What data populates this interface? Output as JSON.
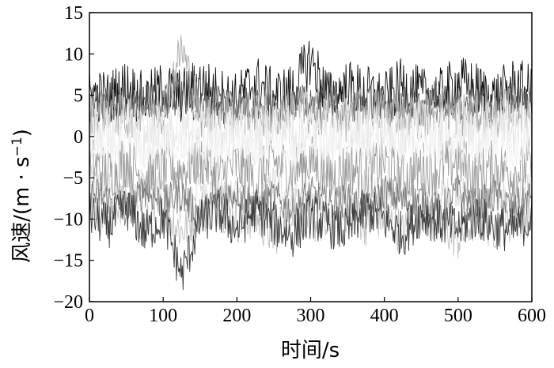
{
  "chart_data": {
    "type": "line",
    "title": "",
    "xlabel": "时间/s",
    "ylabel": "风速/(m · s",
    "ylabel_superscript": "−1",
    "ylabel_close": ")",
    "xlim": [
      0,
      600
    ],
    "ylim": [
      -20,
      15
    ],
    "x_ticks": [
      0,
      100,
      200,
      300,
      400,
      500,
      600
    ],
    "x_tick_labels": [
      "0",
      "100",
      "200",
      "300",
      "400",
      "500",
      "600"
    ],
    "y_ticks": [
      15,
      10,
      5,
      0,
      -5,
      -10,
      -15,
      -20
    ],
    "y_tick_labels": [
      "15",
      "10",
      "5",
      "0",
      "−5",
      "−10",
      "−15",
      "−20"
    ],
    "grid": false,
    "legend": "none",
    "series": [
      {
        "color": "#d8d8d8",
        "x": [
          0,
          25,
          50,
          75,
          100,
          125,
          150,
          175,
          200,
          225,
          250,
          275,
          300,
          325,
          350,
          375,
          400,
          425,
          450,
          475,
          500,
          525,
          550,
          575,
          600
        ],
        "values": [
          -5.5,
          -6.2,
          -7.8,
          -5.1,
          -6.9,
          -8.4,
          -5.8,
          -7.2,
          -6.1,
          -8.9,
          -5.4,
          -6.7,
          -7.9,
          -6.0,
          -8.2,
          -5.6,
          -7.1,
          -6.5,
          -8.8,
          -7.4,
          -6.2,
          -9.5,
          -6.8,
          -7.7,
          -6.3
        ]
      },
      {
        "color": "#c0c0c0",
        "x": [
          0,
          25,
          50,
          75,
          100,
          125,
          150,
          175,
          200,
          225,
          250,
          275,
          300,
          325,
          350,
          375,
          400,
          425,
          450,
          475,
          500,
          525,
          550,
          575,
          600
        ],
        "values": [
          -8.2,
          -9.6,
          -7.4,
          -10.8,
          -8.9,
          -11.5,
          -9.1,
          -8.3,
          -10.2,
          -9.7,
          -12.1,
          -8.6,
          -9.9,
          -11.3,
          -8.8,
          -10.5,
          -9.4,
          -11.8,
          -9.0,
          -10.7,
          -12.4,
          -9.8,
          -11.0,
          -10.1,
          -9.3
        ]
      },
      {
        "color": "#9a9a9a",
        "x": [
          0,
          25,
          50,
          75,
          100,
          125,
          150,
          175,
          200,
          225,
          250,
          275,
          300,
          325,
          350,
          375,
          400,
          425,
          450,
          475,
          500,
          525,
          550,
          575,
          600
        ],
        "values": [
          -3.1,
          -4.5,
          -2.8,
          -5.2,
          -3.9,
          -4.1,
          -2.6,
          -4.8,
          -3.4,
          -5.5,
          -3.0,
          -4.3,
          -2.9,
          -5.0,
          -3.7,
          -4.6,
          -3.2,
          -5.3,
          -3.8,
          -4.0,
          -2.7,
          -4.9,
          -3.5,
          -4.4,
          -3.3
        ]
      },
      {
        "color": "#7a7a7a",
        "x": [
          0,
          25,
          50,
          75,
          100,
          125,
          150,
          175,
          200,
          225,
          250,
          275,
          300,
          325,
          350,
          375,
          400,
          425,
          450,
          475,
          500,
          525,
          550,
          575,
          600
        ],
        "values": [
          -6.8,
          -7.5,
          -9.2,
          -6.4,
          -8.1,
          -7.0,
          -9.6,
          -7.8,
          -6.6,
          -8.7,
          -7.3,
          -9.0,
          -6.9,
          -8.4,
          -7.7,
          -9.3,
          -6.5,
          -8.0,
          -7.6,
          -9.1,
          -6.7,
          -8.5,
          -7.2,
          -8.8,
          -7.1
        ]
      },
      {
        "color": "#3a3a3a",
        "x": [
          0,
          25,
          50,
          75,
          100,
          125,
          150,
          175,
          200,
          225,
          250,
          275,
          300,
          325,
          350,
          375,
          400,
          425,
          450,
          475,
          500,
          525,
          550,
          575,
          600
        ],
        "values": [
          -9.4,
          -10.9,
          -8.5,
          -11.7,
          -9.8,
          -16.8,
          -10.3,
          -9.1,
          -11.2,
          -8.9,
          -10.6,
          -12.0,
          -9.5,
          -10.8,
          -11.5,
          -8.7,
          -10.1,
          -11.9,
          -9.3,
          -10.4,
          -11.1,
          -9.7,
          -10.9,
          -11.4,
          -9.9
        ]
      },
      {
        "color": "#111111",
        "x": [
          0,
          25,
          50,
          75,
          100,
          125,
          150,
          175,
          200,
          225,
          250,
          275,
          300,
          325,
          350,
          375,
          400,
          425,
          450,
          475,
          500,
          525,
          550,
          575,
          600
        ],
        "values": [
          5.2,
          4.6,
          6.1,
          4.3,
          5.8,
          4.9,
          6.4,
          5.1,
          4.4,
          6.7,
          4.8,
          5.5,
          9.4,
          4.7,
          6.0,
          5.3,
          4.5,
          6.3,
          5.0,
          4.9,
          6.6,
          5.7,
          4.6,
          6.2,
          5.4
        ]
      },
      {
        "color": "#5a5a5a",
        "x": [
          0,
          25,
          50,
          75,
          100,
          125,
          150,
          175,
          200,
          225,
          250,
          275,
          300,
          325,
          350,
          375,
          400,
          425,
          450,
          475,
          500,
          525,
          550,
          575,
          600
        ],
        "values": [
          3.8,
          4.2,
          3.1,
          4.9,
          3.6,
          5.1,
          3.3,
          4.6,
          3.9,
          4.0,
          3.2,
          4.8,
          3.5,
          4.4,
          3.0,
          4.7,
          3.7,
          4.1,
          3.4,
          5.0,
          3.8,
          4.3,
          3.1,
          4.5,
          3.6
        ]
      },
      {
        "color": "#a8a8a8",
        "x": [
          0,
          25,
          50,
          75,
          100,
          125,
          150,
          175,
          200,
          225,
          250,
          275,
          300,
          325,
          350,
          375,
          400,
          425,
          450,
          475,
          500,
          525,
          550,
          575,
          600
        ],
        "values": [
          2.6,
          3.4,
          2.1,
          3.8,
          2.9,
          10.8,
          2.4,
          3.6,
          2.7,
          3.1,
          2.2,
          3.9,
          2.5,
          3.3,
          2.0,
          3.7,
          2.8,
          3.2,
          2.3,
          3.5,
          2.6,
          3.0,
          2.4,
          3.6,
          2.9
        ]
      },
      {
        "color": "#e6e6e6",
        "x": [
          0,
          25,
          50,
          75,
          100,
          125,
          150,
          175,
          200,
          225,
          250,
          275,
          300,
          325,
          350,
          375,
          400,
          425,
          450,
          475,
          500,
          525,
          550,
          575,
          600
        ],
        "values": [
          1.2,
          0.4,
          1.8,
          -0.3,
          1.5,
          0.7,
          2.1,
          0.2,
          1.3,
          -0.5,
          1.9,
          0.6,
          1.1,
          -0.2,
          1.7,
          0.3,
          1.4,
          -0.6,
          2.0,
          0.5,
          1.2,
          -0.1,
          1.6,
          0.8,
          1.0
        ]
      },
      {
        "color": "#f2f2f2",
        "x": [
          0,
          25,
          50,
          75,
          100,
          125,
          150,
          175,
          200,
          225,
          250,
          275,
          300,
          325,
          350,
          375,
          400,
          425,
          450,
          475,
          500,
          525,
          550,
          575,
          600
        ],
        "values": [
          -0.8,
          -1.6,
          -0.2,
          -1.9,
          -0.7,
          -1.3,
          -0.4,
          -2.1,
          -0.9,
          -1.1,
          -0.3,
          -1.8,
          -0.6,
          -1.4,
          -0.1,
          -2.0,
          -0.8,
          -1.2,
          -0.5,
          -1.7,
          -0.9,
          -1.5,
          -0.2,
          -1.8,
          -0.7
        ]
      }
    ]
  }
}
